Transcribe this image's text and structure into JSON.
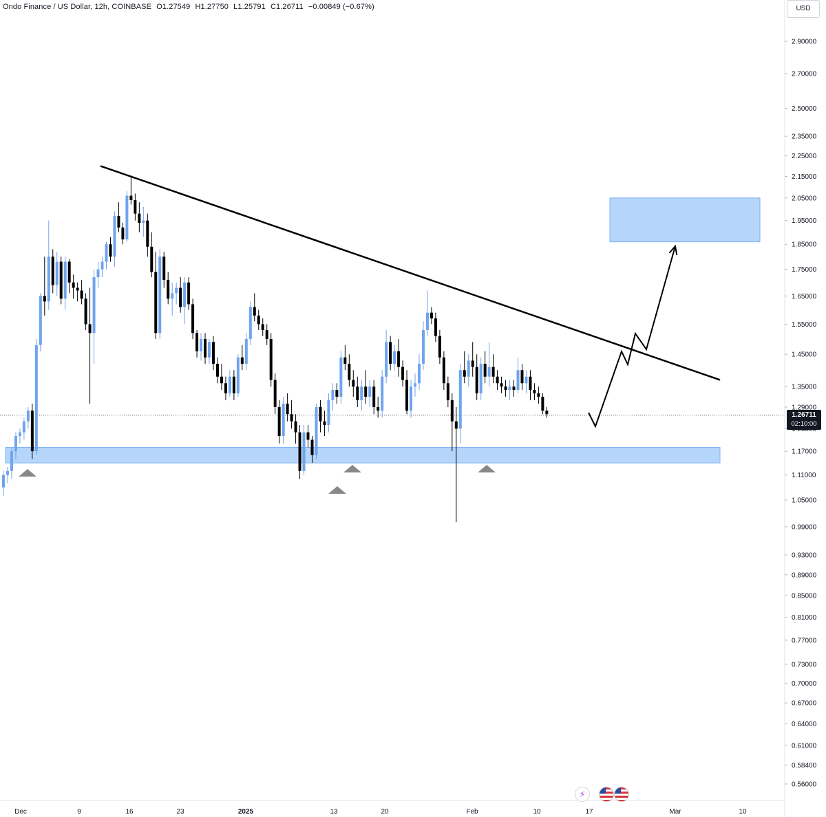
{
  "header": {
    "symbol": "Ondo Finance / US Dollar, 12h, COINBASE",
    "open": "O1.27549",
    "high": "H1.27750",
    "low": "L1.25791",
    "close": "C1.26711",
    "change": "−0.00849 (−0.67%)"
  },
  "price_axis": {
    "currency": "USD",
    "last_price": "1.26711",
    "countdown": "02:10:00"
  },
  "colors": {
    "up_candle": "#6fa4ee",
    "down_candle": "#000000",
    "zone": "#9cc7f9",
    "zone_border": "#7fb3f5",
    "triangle": "#888888",
    "line": "#000000"
  },
  "events": {
    "lightning_icon": "⚡",
    "flag_icons": [
      "us-flag-icon",
      "us-flag-icon"
    ]
  },
  "chart_data": {
    "type": "candlestick",
    "scale": "log",
    "ylim": [
      0.54,
      3.1
    ],
    "price_ticks": [
      "2.90000",
      "2.70000",
      "2.50000",
      "2.35000",
      "2.25000",
      "2.15000",
      "2.05000",
      "1.95000",
      "1.85000",
      "1.75000",
      "1.65000",
      "1.55000",
      "1.45000",
      "1.35000",
      "1.29000",
      "1.23000",
      "1.17000",
      "1.11000",
      "1.05000",
      "0.99000",
      "0.93000",
      "0.89000",
      "0.85000",
      "0.81000",
      "0.77000",
      "0.73000",
      "0.70000",
      "0.67000",
      "0.64000",
      "0.61000",
      "0.58400",
      "0.56000"
    ],
    "time_ticks": [
      {
        "label": "Dec",
        "bold": false
      },
      {
        "label": "9",
        "bold": false
      },
      {
        "label": "16",
        "bold": false
      },
      {
        "label": "23",
        "bold": false
      },
      {
        "label": "2025",
        "bold": true
      },
      {
        "label": "13",
        "bold": false
      },
      {
        "label": "20",
        "bold": false
      },
      {
        "label": "Feb",
        "bold": false
      },
      {
        "label": "10",
        "bold": false
      },
      {
        "label": "17",
        "bold": false
      },
      {
        "label": "Mar",
        "bold": false
      },
      {
        "label": "10",
        "bold": false
      }
    ],
    "last_price": 1.26711,
    "candles": [
      [
        1.08,
        1.12,
        1.06,
        1.11
      ],
      [
        1.11,
        1.13,
        1.09,
        1.12
      ],
      [
        1.12,
        1.18,
        1.1,
        1.17
      ],
      [
        1.17,
        1.22,
        1.15,
        1.21
      ],
      [
        1.21,
        1.23,
        1.19,
        1.22
      ],
      [
        1.22,
        1.26,
        1.2,
        1.25
      ],
      [
        1.25,
        1.29,
        1.23,
        1.28
      ],
      [
        1.28,
        1.3,
        1.15,
        1.17
      ],
      [
        1.17,
        1.5,
        1.16,
        1.48
      ],
      [
        1.48,
        1.66,
        1.46,
        1.65
      ],
      [
        1.65,
        1.8,
        1.58,
        1.63
      ],
      [
        1.63,
        1.95,
        1.6,
        1.8
      ],
      [
        1.8,
        1.83,
        1.66,
        1.69
      ],
      [
        1.69,
        1.82,
        1.65,
        1.78
      ],
      [
        1.78,
        1.8,
        1.62,
        1.64
      ],
      [
        1.64,
        1.8,
        1.6,
        1.78
      ],
      [
        1.78,
        1.79,
        1.66,
        1.7
      ],
      [
        1.7,
        1.73,
        1.64,
        1.68
      ],
      [
        1.68,
        1.7,
        1.63,
        1.67
      ],
      [
        1.67,
        1.71,
        1.62,
        1.64
      ],
      [
        1.64,
        1.66,
        1.53,
        1.55
      ],
      [
        1.55,
        1.68,
        1.3,
        1.52
      ],
      [
        1.52,
        1.75,
        1.42,
        1.72
      ],
      [
        1.72,
        1.78,
        1.68,
        1.75
      ],
      [
        1.75,
        1.8,
        1.72,
        1.78
      ],
      [
        1.78,
        1.86,
        1.75,
        1.85
      ],
      [
        1.85,
        1.88,
        1.78,
        1.8
      ],
      [
        1.8,
        1.99,
        1.76,
        1.97
      ],
      [
        1.97,
        2.03,
        1.9,
        1.92
      ],
      [
        1.92,
        1.94,
        1.85,
        1.87
      ],
      [
        1.87,
        2.08,
        1.86,
        2.06
      ],
      [
        2.06,
        2.15,
        2.02,
        2.04
      ],
      [
        2.04,
        2.07,
        1.95,
        1.98
      ],
      [
        1.98,
        2.03,
        1.9,
        1.94
      ],
      [
        1.94,
        2.01,
        1.88,
        1.95
      ],
      [
        1.95,
        1.98,
        1.8,
        1.84
      ],
      [
        1.84,
        1.9,
        1.72,
        1.74
      ],
      [
        1.74,
        1.82,
        1.5,
        1.52
      ],
      [
        1.52,
        1.83,
        1.5,
        1.8
      ],
      [
        1.8,
        1.82,
        1.68,
        1.71
      ],
      [
        1.71,
        1.74,
        1.62,
        1.64
      ],
      [
        1.64,
        1.7,
        1.58,
        1.66
      ],
      [
        1.66,
        1.7,
        1.62,
        1.68
      ],
      [
        1.68,
        1.72,
        1.59,
        1.61
      ],
      [
        1.61,
        1.72,
        1.55,
        1.7
      ],
      [
        1.7,
        1.72,
        1.6,
        1.62
      ],
      [
        1.62,
        1.64,
        1.5,
        1.52
      ],
      [
        1.52,
        1.53,
        1.44,
        1.46
      ],
      [
        1.46,
        1.52,
        1.43,
        1.5
      ],
      [
        1.5,
        1.52,
        1.42,
        1.44
      ],
      [
        1.44,
        1.5,
        1.42,
        1.49
      ],
      [
        1.49,
        1.51,
        1.4,
        1.42
      ],
      [
        1.42,
        1.44,
        1.36,
        1.38
      ],
      [
        1.38,
        1.42,
        1.34,
        1.36
      ],
      [
        1.36,
        1.38,
        1.31,
        1.33
      ],
      [
        1.33,
        1.4,
        1.32,
        1.38
      ],
      [
        1.38,
        1.4,
        1.31,
        1.33
      ],
      [
        1.33,
        1.45,
        1.32,
        1.44
      ],
      [
        1.44,
        1.48,
        1.4,
        1.42
      ],
      [
        1.42,
        1.52,
        1.4,
        1.5
      ],
      [
        1.5,
        1.63,
        1.48,
        1.61
      ],
      [
        1.61,
        1.66,
        1.56,
        1.58
      ],
      [
        1.58,
        1.6,
        1.53,
        1.55
      ],
      [
        1.55,
        1.57,
        1.51,
        1.53
      ],
      [
        1.53,
        1.55,
        1.48,
        1.5
      ],
      [
        1.5,
        1.52,
        1.35,
        1.37
      ],
      [
        1.37,
        1.39,
        1.27,
        1.29
      ],
      [
        1.29,
        1.31,
        1.19,
        1.21
      ],
      [
        1.21,
        1.32,
        1.19,
        1.3
      ],
      [
        1.3,
        1.33,
        1.25,
        1.27
      ],
      [
        1.27,
        1.31,
        1.23,
        1.25
      ],
      [
        1.25,
        1.27,
        1.19,
        1.22
      ],
      [
        1.22,
        1.24,
        1.1,
        1.12
      ],
      [
        1.12,
        1.24,
        1.11,
        1.22
      ],
      [
        1.22,
        1.24,
        1.18,
        1.2
      ],
      [
        1.2,
        1.21,
        1.14,
        1.16
      ],
      [
        1.16,
        1.3,
        1.15,
        1.29
      ],
      [
        1.29,
        1.31,
        1.22,
        1.25
      ],
      [
        1.25,
        1.28,
        1.21,
        1.24
      ],
      [
        1.24,
        1.33,
        1.22,
        1.31
      ],
      [
        1.31,
        1.36,
        1.28,
        1.34
      ],
      [
        1.34,
        1.36,
        1.3,
        1.32
      ],
      [
        1.32,
        1.46,
        1.3,
        1.44
      ],
      [
        1.44,
        1.48,
        1.4,
        1.42
      ],
      [
        1.42,
        1.45,
        1.35,
        1.37
      ],
      [
        1.37,
        1.4,
        1.32,
        1.35
      ],
      [
        1.35,
        1.38,
        1.29,
        1.31
      ],
      [
        1.31,
        1.37,
        1.28,
        1.35
      ],
      [
        1.35,
        1.4,
        1.3,
        1.32
      ],
      [
        1.32,
        1.37,
        1.29,
        1.35
      ],
      [
        1.35,
        1.37,
        1.27,
        1.29
      ],
      [
        1.29,
        1.32,
        1.26,
        1.28
      ],
      [
        1.28,
        1.4,
        1.26,
        1.38
      ],
      [
        1.38,
        1.53,
        1.36,
        1.49
      ],
      [
        1.49,
        1.51,
        1.4,
        1.42
      ],
      [
        1.42,
        1.48,
        1.4,
        1.46
      ],
      [
        1.46,
        1.5,
        1.38,
        1.41
      ],
      [
        1.41,
        1.43,
        1.35,
        1.37
      ],
      [
        1.37,
        1.4,
        1.27,
        1.28
      ],
      [
        1.28,
        1.37,
        1.26,
        1.35
      ],
      [
        1.35,
        1.39,
        1.32,
        1.36
      ],
      [
        1.36,
        1.45,
        1.34,
        1.42
      ],
      [
        1.42,
        1.56,
        1.4,
        1.53
      ],
      [
        1.53,
        1.67,
        1.51,
        1.59
      ],
      [
        1.59,
        1.61,
        1.55,
        1.57
      ],
      [
        1.57,
        1.59,
        1.49,
        1.51
      ],
      [
        1.51,
        1.53,
        1.42,
        1.44
      ],
      [
        1.44,
        1.46,
        1.34,
        1.36
      ],
      [
        1.36,
        1.38,
        1.29,
        1.31
      ],
      [
        1.31,
        1.33,
        1.17,
        1.25
      ],
      [
        1.25,
        1.29,
        1.0,
        1.23
      ],
      [
        1.23,
        1.42,
        1.19,
        1.4
      ],
      [
        1.4,
        1.46,
        1.36,
        1.38
      ],
      [
        1.38,
        1.45,
        1.35,
        1.43
      ],
      [
        1.43,
        1.49,
        1.38,
        1.41
      ],
      [
        1.41,
        1.45,
        1.31,
        1.33
      ],
      [
        1.33,
        1.44,
        1.31,
        1.42
      ],
      [
        1.42,
        1.46,
        1.36,
        1.38
      ],
      [
        1.38,
        1.49,
        1.35,
        1.41
      ],
      [
        1.41,
        1.45,
        1.36,
        1.38
      ],
      [
        1.38,
        1.4,
        1.34,
        1.36
      ],
      [
        1.36,
        1.38,
        1.33,
        1.35
      ],
      [
        1.35,
        1.37,
        1.32,
        1.34
      ],
      [
        1.34,
        1.37,
        1.31,
        1.35
      ],
      [
        1.35,
        1.37,
        1.32,
        1.34
      ],
      [
        1.34,
        1.44,
        1.33,
        1.4
      ],
      [
        1.4,
        1.42,
        1.34,
        1.36
      ],
      [
        1.36,
        1.4,
        1.33,
        1.38
      ],
      [
        1.38,
        1.4,
        1.31,
        1.34
      ],
      [
        1.34,
        1.36,
        1.31,
        1.33
      ],
      [
        1.33,
        1.35,
        1.3,
        1.32
      ],
      [
        1.32,
        1.33,
        1.27,
        1.28
      ],
      [
        1.28,
        1.29,
        1.26,
        1.27
      ]
    ],
    "annotations": {
      "trendline": {
        "start": {
          "bar": 20,
          "price": 2.2
        },
        "end": {
          "bar": 142,
          "price": 1.37
        }
      },
      "support_zone": {
        "from_bar": 0,
        "to_bar": 142,
        "price_low": 1.14,
        "price_high": 1.18
      },
      "target_zone": {
        "from_bar": 124,
        "to_bar": 152,
        "price_low": 1.86,
        "price_high": 2.05
      },
      "projection_path": [
        {
          "bar": 118,
          "price": 1.28
        },
        {
          "bar": 120,
          "price": 1.24
        },
        {
          "bar": 124.5,
          "price": 1.46
        },
        {
          "bar": 126,
          "price": 1.42
        },
        {
          "bar": 128.5,
          "price": 1.52
        },
        {
          "bar": 130.5,
          "price": 1.46
        },
        {
          "bar": 136,
          "price": 1.86
        }
      ],
      "support_markers": [
        {
          "bar": 4.5,
          "price": 1.11
        },
        {
          "bar": 67,
          "price": 1.06
        },
        {
          "bar": 70.5,
          "price": 1.11
        },
        {
          "bar": 97.5,
          "price": 1.11
        }
      ]
    }
  }
}
